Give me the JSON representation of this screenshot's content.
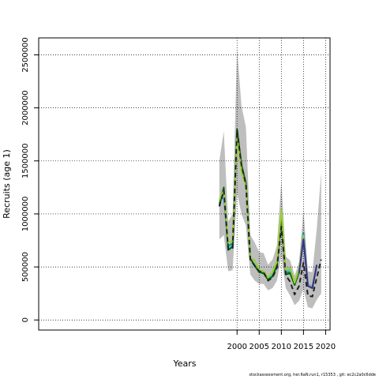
{
  "chart_data": {
    "type": "line",
    "xlabel": "Years",
    "ylabel": "Recruits (age 1)",
    "xlim": [
      1955.2,
      2021
    ],
    "ylim": [
      -95000,
      2660000
    ],
    "x_ticks": [
      2000,
      2005,
      2010,
      2015,
      2020
    ],
    "y_ticks": [
      0,
      500000,
      1000000,
      1500000,
      2000000,
      2500000
    ],
    "x_tick_labels": [
      "2000",
      "2005",
      "2010",
      "2015",
      "2020"
    ],
    "y_tick_labels": [
      "0",
      "500000",
      "1000000",
      "1500000",
      "2000000",
      "2500000"
    ],
    "grid": "dotted",
    "confidence_band": {
      "color": "#bebebe",
      "x": [
        1996,
        1997,
        1998,
        1999,
        2000,
        2001,
        2002,
        2003,
        2004,
        2005,
        2006,
        2007,
        2008,
        2009,
        2010,
        2011,
        2012,
        2013,
        2014,
        2015,
        2016,
        2017,
        2018,
        2019
      ],
      "upper": [
        1500000,
        1780000,
        930000,
        1000000,
        2560000,
        2020000,
        1820000,
        800000,
        730000,
        640000,
        630000,
        520000,
        570000,
        700000,
        1310000,
        600000,
        560000,
        420000,
        540000,
        1040000,
        460000,
        450000,
        860000,
        1390000
      ],
      "lower": [
        760000,
        800000,
        460000,
        470000,
        1200000,
        1000000,
        890000,
        430000,
        370000,
        340000,
        340000,
        280000,
        300000,
        370000,
        600000,
        300000,
        230000,
        140000,
        180000,
        290000,
        120000,
        110000,
        190000,
        250000
      ]
    },
    "series": [
      {
        "color": "#008b8b",
        "x": [
          1996,
          1997,
          1998,
          1999,
          2000,
          2001,
          2002,
          2003,
          2004,
          2005,
          2006,
          2007,
          2008,
          2009,
          2010,
          2011,
          2012,
          2013,
          2014,
          2015,
          2016,
          2017,
          2018
        ],
        "values": [
          1100000,
          1180000,
          700000,
          720000,
          1750000,
          1420000,
          1280000,
          580000,
          510000,
          460000,
          450000,
          390000,
          420000,
          520000,
          980000,
          450000,
          450000,
          340000,
          470000,
          820000,
          330000,
          300000,
          520000
        ]
      },
      {
        "color": "#4db8e8",
        "x": [
          1996,
          1997,
          1998,
          1999,
          2000,
          2001,
          2002,
          2003,
          2004,
          2005,
          2006,
          2007,
          2008,
          2009,
          2010,
          2011,
          2012,
          2013,
          2014,
          2015,
          2016,
          2017,
          2018
        ],
        "values": [
          1120000,
          1170000,
          680000,
          700000,
          1760000,
          1440000,
          1270000,
          570000,
          520000,
          460000,
          460000,
          390000,
          430000,
          520000,
          990000,
          460000,
          470000,
          330000,
          470000,
          800000,
          340000,
          310000,
          520000
        ]
      },
      {
        "color": "#006400",
        "x": [
          1996,
          1997,
          1998,
          1999,
          2000,
          2001,
          2002,
          2003,
          2004,
          2005,
          2006,
          2007,
          2008,
          2009,
          2010,
          2011,
          2012,
          2013,
          2014,
          2015,
          2016,
          2017,
          2018
        ],
        "values": [
          1080000,
          1250000,
          660000,
          690000,
          1800000,
          1460000,
          1290000,
          580000,
          510000,
          450000,
          440000,
          380000,
          410000,
          510000,
          980000,
          430000,
          440000,
          330000,
          450000,
          780000,
          330000,
          300000,
          510000
        ]
      },
      {
        "color": "#9acd32",
        "x": [
          1996,
          1997,
          1998,
          1999,
          2000,
          2001,
          2002,
          2003,
          2004,
          2005,
          2006,
          2007,
          2008,
          2009,
          2010,
          2011,
          2012,
          2013,
          2014,
          2015,
          2016,
          2017,
          2018
        ],
        "values": [
          1130000,
          1220000,
          730000,
          750000,
          1720000,
          1400000,
          1260000,
          590000,
          560000,
          470000,
          460000,
          400000,
          450000,
          550000,
          1040000,
          470000,
          490000,
          350000,
          480000,
          790000,
          330000,
          300000,
          510000
        ]
      },
      {
        "color": "#3a2f8f",
        "x": [
          2014,
          2015,
          2016,
          2017,
          2018
        ],
        "values": [
          440000,
          760000,
          320000,
          300000,
          520000
        ]
      },
      {
        "color": "#222222",
        "dashed": true,
        "x": [
          1996,
          1997,
          1998,
          1999,
          2000,
          2001,
          2002,
          2003,
          2004,
          2005,
          2006,
          2007,
          2008,
          2009,
          2010,
          2011,
          2012,
          2013,
          2014,
          2015,
          2016,
          2017,
          2018,
          2019
        ],
        "values": [
          1070000,
          1220000,
          670000,
          680000,
          1790000,
          1460000,
          1280000,
          570000,
          510000,
          460000,
          450000,
          370000,
          400000,
          490000,
          880000,
          420000,
          360000,
          240000,
          320000,
          540000,
          230000,
          220000,
          400000,
          570000
        ]
      }
    ]
  },
  "footer": "stockassessment.org, her.6aN.run1, r15353 , git: ec2c2a0c6dde"
}
